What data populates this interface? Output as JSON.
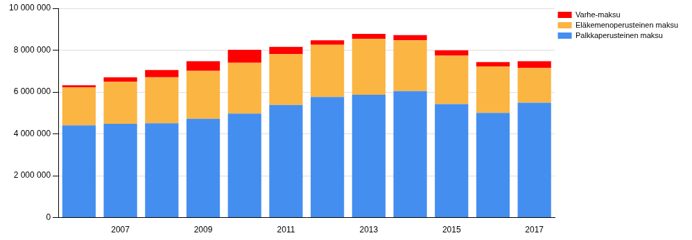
{
  "chart_data": {
    "type": "bar",
    "stacked": true,
    "grid": true,
    "legend": "right",
    "categories": [
      null,
      "2007",
      null,
      "2009",
      null,
      "2011",
      null,
      "2013",
      null,
      "2015",
      null,
      "2017"
    ],
    "series": [
      {
        "name": "Palkkaperusteinen maksu",
        "color": "#448ef0",
        "values": [
          4410000,
          4480000,
          4510000,
          4720000,
          4970000,
          5380000,
          5760000,
          5870000,
          6040000,
          5420000,
          5000000,
          5490000
        ]
      },
      {
        "name": "Eläkemenoperusteinen maksu",
        "color": "#fbb543",
        "values": [
          1810000,
          2010000,
          2190000,
          2290000,
          2430000,
          2430000,
          2500000,
          2670000,
          2430000,
          2320000,
          2220000,
          1660000
        ]
      },
      {
        "name": "Varhe-maksu",
        "color": "#ff0000",
        "values": [
          100000,
          210000,
          350000,
          460000,
          620000,
          350000,
          210000,
          240000,
          250000,
          250000,
          210000,
          320000
        ]
      }
    ],
    "ylim": [
      0,
      10000000
    ],
    "yticks": [
      0,
      {
        "value": 2000000,
        "label": "2 000 000"
      },
      {
        "value": 4000000,
        "label": "4 000 000"
      },
      {
        "value": 6000000,
        "label": "6 000 000"
      },
      {
        "value": 8000000,
        "label": "8 000 000"
      },
      {
        "value": 10000000,
        "label": "10 000 000"
      }
    ]
  }
}
